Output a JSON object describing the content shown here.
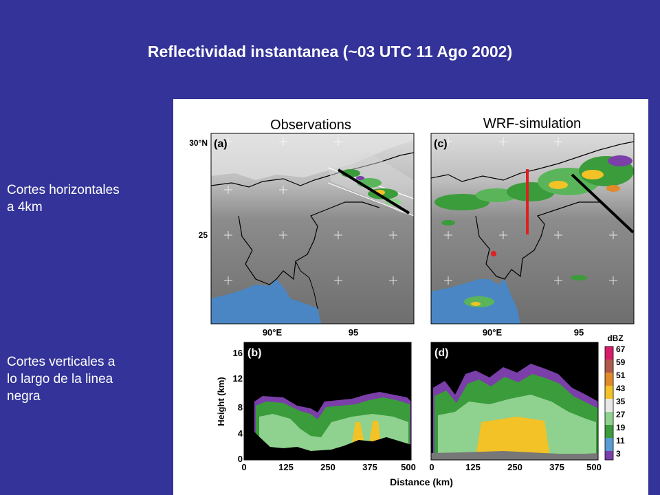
{
  "slide": {
    "title": "Reflectividad instantanea (~03 UTC 11 Ago 2002)",
    "side_labels": [
      "Cortes horizontales\na  4km",
      "Cortes verticales a\nlo largo de la linea\nnegra"
    ]
  },
  "figure": {
    "column_titles": [
      "Observations",
      "WRF-simulation"
    ],
    "panel_labels": [
      "(a)",
      "(b)",
      "(c)",
      "(d)"
    ],
    "map_lat_ticks": [
      "30°N",
      "25"
    ],
    "map_lon_ticks": [
      "90°E",
      "95"
    ],
    "section_ylabel": "Height (km)",
    "section_xlabel": "Distance (km)",
    "section_yticks": [
      "16",
      "12",
      "8",
      "4",
      "0"
    ],
    "section_xticks": [
      "0",
      "125",
      "250",
      "375",
      "500"
    ],
    "colorbar_unit": "dBZ",
    "colorbar_ticks": [
      "67",
      "59",
      "51",
      "43",
      "35",
      "27",
      "19",
      "11",
      "3"
    ],
    "colors": {
      "background": "#333399",
      "sea": "#4a86c4",
      "section_bg": "#000000",
      "cross_section_line": "#000000",
      "meridian_line": "#e02020",
      "point_marker": "#e02020"
    }
  }
}
